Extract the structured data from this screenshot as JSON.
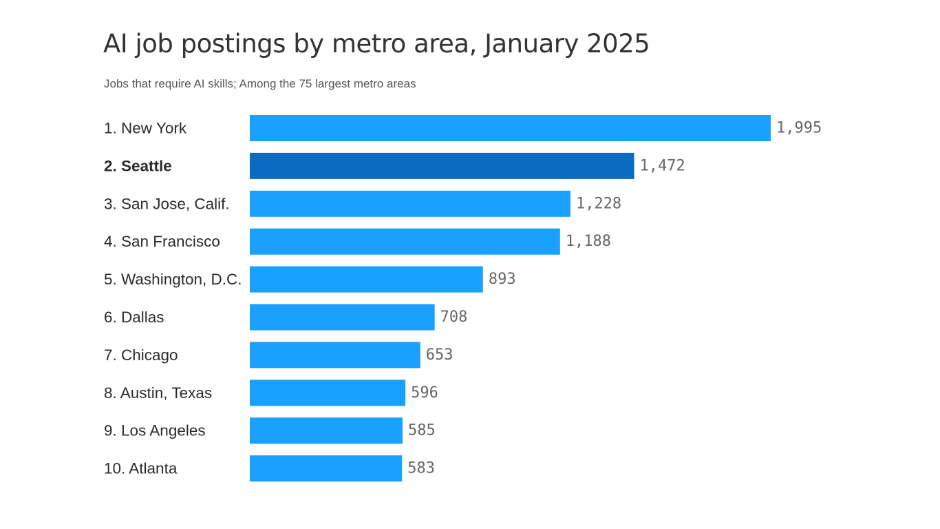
{
  "title": "AI job postings by metro area, January 2025",
  "subtitle": "Jobs that require AI skills; Among the 75 largest metro areas",
  "colors": {
    "bar": "#1aa1ff",
    "bar_highlight": "#0b6ac2",
    "text": "#333333",
    "value_text": "#666666"
  },
  "chart_data": {
    "type": "bar",
    "orientation": "horizontal",
    "categories": [
      "1. New York",
      "2. Seattle",
      "3. San Jose, Calif.",
      "4. San Francisco",
      "5. Washington, D.C.",
      "6. Dallas",
      "7. Chicago",
      "8. Austin, Texas",
      "9. Los Angeles",
      "10. Atlanta"
    ],
    "values": [
      1995,
      1472,
      1228,
      1188,
      893,
      708,
      653,
      596,
      585,
      583
    ],
    "value_labels": [
      "1,995",
      "1,472",
      "1,228",
      "1,188",
      "893",
      "708",
      "653",
      "596",
      "585",
      "583"
    ],
    "highlight_index": 1,
    "title": "AI job postings by metro area, January 2025",
    "subtitle": "Jobs that require AI skills; Among the 75 largest metro areas",
    "xlabel": "",
    "ylabel": "",
    "xlim": [
      0,
      1995
    ],
    "grid": false,
    "legend": "none"
  }
}
